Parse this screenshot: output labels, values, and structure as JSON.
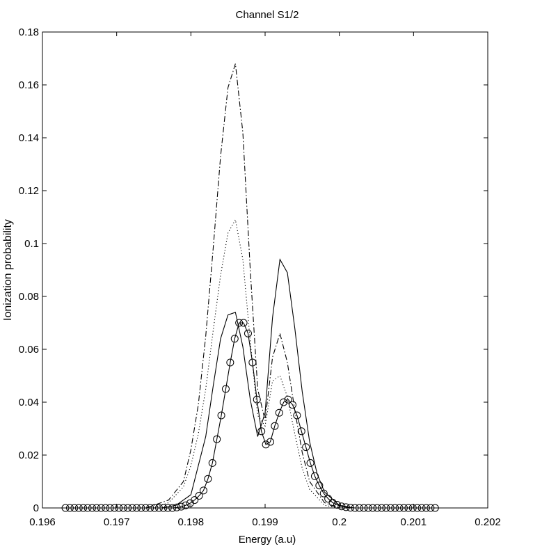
{
  "chart_data": {
    "type": "line",
    "title": "Channel S1/2",
    "xlabel": "Energy (a.u)",
    "ylabel": "Ionization probability",
    "xlim": [
      0.196,
      0.202
    ],
    "ylim": [
      0,
      0.18
    ],
    "xticks": [
      "0.196",
      "0.197",
      "0.198",
      "0.199",
      "0.2",
      "0.201",
      "0.202"
    ],
    "yticks": [
      "0",
      "0.02",
      "0.04",
      "0.06",
      "0.08",
      "0.1",
      "0.12",
      "0.14",
      "0.16",
      "0.18"
    ],
    "grid": false,
    "legend": "none",
    "series": [
      {
        "style": "solid",
        "marker": "none",
        "x": [
          0.1976,
          0.1978,
          0.198,
          0.1982,
          0.1983,
          0.1984,
          0.1985,
          0.1986,
          0.1987,
          0.1988,
          0.1989,
          0.199,
          0.1991,
          0.1992,
          0.1993,
          0.1994,
          0.1995,
          0.1996,
          0.1997,
          0.1998,
          0.2,
          0.2002
        ],
        "y": [
          0.0,
          0.001,
          0.005,
          0.027,
          0.046,
          0.064,
          0.073,
          0.074,
          0.061,
          0.041,
          0.027,
          0.036,
          0.072,
          0.094,
          0.089,
          0.068,
          0.044,
          0.025,
          0.013,
          0.006,
          0.001,
          0.0
        ]
      },
      {
        "style": "dash-dot",
        "marker": "none",
        "x": [
          0.1974,
          0.1977,
          0.1979,
          0.198,
          0.1981,
          0.1982,
          0.1983,
          0.1984,
          0.1985,
          0.1986,
          0.1987,
          0.1988,
          0.1989,
          0.199,
          0.1991,
          0.1992,
          0.1993,
          0.1994,
          0.1995,
          0.1996,
          0.1998,
          0.2
        ],
        "y": [
          0.0,
          0.003,
          0.01,
          0.022,
          0.039,
          0.065,
          0.098,
          0.133,
          0.159,
          0.168,
          0.142,
          0.09,
          0.045,
          0.033,
          0.057,
          0.066,
          0.055,
          0.037,
          0.021,
          0.01,
          0.002,
          0.0
        ]
      },
      {
        "style": "dotted",
        "marker": "none",
        "x": [
          0.1975,
          0.1977,
          0.1979,
          0.198,
          0.1981,
          0.1982,
          0.1983,
          0.1984,
          0.1985,
          0.1986,
          0.1987,
          0.1988,
          0.1989,
          0.199,
          0.1991,
          0.1992,
          0.1993,
          0.1994,
          0.1995,
          0.1996,
          0.1998,
          0.2
        ],
        "y": [
          0.0,
          0.002,
          0.008,
          0.016,
          0.028,
          0.045,
          0.067,
          0.088,
          0.104,
          0.109,
          0.094,
          0.063,
          0.035,
          0.031,
          0.048,
          0.05,
          0.042,
          0.028,
          0.015,
          0.007,
          0.001,
          0.0
        ]
      },
      {
        "style": "solid",
        "marker": "circle",
        "x": [
          0.19631,
          0.19637,
          0.19643,
          0.19649,
          0.19655,
          0.19661,
          0.19667,
          0.19673,
          0.19679,
          0.19685,
          0.19691,
          0.19697,
          0.19703,
          0.19709,
          0.19715,
          0.19721,
          0.19727,
          0.19733,
          0.19739,
          0.19745,
          0.19751,
          0.19757,
          0.19763,
          0.19769,
          0.19775,
          0.19781,
          0.19787,
          0.19793,
          0.19799,
          0.19805,
          0.19811,
          0.19817,
          0.19823,
          0.19829,
          0.19835,
          0.19841,
          0.19847,
          0.19853,
          0.19859,
          0.19865,
          0.19871,
          0.19877,
          0.19883,
          0.19889,
          0.19895,
          0.19901,
          0.19907,
          0.19913,
          0.19919,
          0.19925,
          0.19931,
          0.19937,
          0.19943,
          0.19949,
          0.19955,
          0.19961,
          0.19967,
          0.19973,
          0.19979,
          0.19985,
          0.19991,
          0.19997,
          0.20003,
          0.20009,
          0.20015,
          0.20021,
          0.20027,
          0.20033,
          0.20039,
          0.20045,
          0.20051,
          0.20057,
          0.20063,
          0.20069,
          0.20075,
          0.20081,
          0.20087,
          0.20093,
          0.20099,
          0.20105,
          0.20111,
          0.20117,
          0.20123,
          0.20129
        ],
        "y": [
          0,
          0,
          0,
          0,
          0,
          0,
          0,
          0,
          0,
          0,
          0,
          0,
          0,
          0,
          0,
          0,
          0,
          0,
          0,
          0,
          0,
          0,
          0,
          0,
          0,
          0.0002,
          0.0005,
          0.001,
          0.0018,
          0.003,
          0.0046,
          0.0066,
          0.011,
          0.017,
          0.026,
          0.035,
          0.045,
          0.055,
          0.064,
          0.07,
          0.07,
          0.066,
          0.055,
          0.041,
          0.029,
          0.024,
          0.025,
          0.031,
          0.036,
          0.04,
          0.041,
          0.039,
          0.035,
          0.029,
          0.023,
          0.017,
          0.012,
          0.0085,
          0.0055,
          0.0035,
          0.002,
          0.0012,
          0.0006,
          0.0003,
          0.0001,
          0,
          0,
          0,
          0,
          0,
          0,
          0,
          0,
          0,
          0,
          0,
          0,
          0,
          0,
          0,
          0,
          0,
          0,
          0
        ]
      }
    ]
  }
}
